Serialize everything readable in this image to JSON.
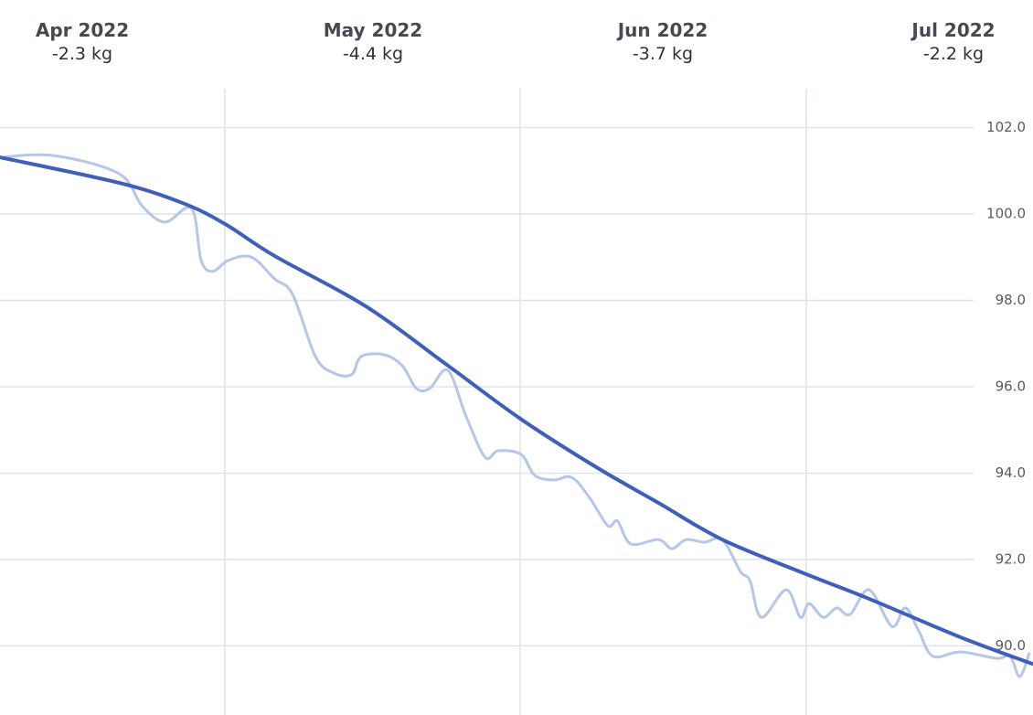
{
  "chart_data": {
    "type": "line",
    "months": [
      {
        "label": "Apr 2022",
        "change": "-2.3 kg"
      },
      {
        "label": "May 2022",
        "change": "-4.4 kg"
      },
      {
        "label": "Jun 2022",
        "change": "-3.7 kg"
      },
      {
        "label": "Jul 2022",
        "change": "-2.2 kg"
      }
    ],
    "xlim": [
      6.4,
      114.8
    ],
    "xticks": [
      30,
      61,
      91
    ],
    "ylim": [
      88.4,
      102.9
    ],
    "yticks": [
      {
        "value": 90,
        "label": "90.0"
      },
      {
        "value": 92,
        "label": "92.0"
      },
      {
        "value": 94,
        "label": "94.0"
      },
      {
        "value": 96,
        "label": "96.0"
      },
      {
        "value": 98,
        "label": "98.0"
      },
      {
        "value": 100,
        "label": "100.0"
      },
      {
        "value": 102,
        "label": "102.0"
      }
    ],
    "grid": true,
    "series": [
      {
        "color": "#b4c6e9",
        "width": 3,
        "x": [
          6.4,
          12.1,
          18.9,
          21.3,
          23.7,
          26.5,
          27.5,
          28.7,
          30.4,
          32.8,
          35.2,
          37.1,
          39.5,
          41.4,
          43.3,
          44.3,
          46.7,
          48.6,
          50.1,
          51.5,
          53.4,
          55.3,
          57.3,
          58.7,
          61.1,
          62.5,
          64.5,
          66.4,
          68.3,
          70.2,
          71.2,
          72.6,
          75.5,
          76.9,
          78.4,
          80.3,
          82.2,
          84.1,
          85.1,
          86.3,
          88.9,
          90.4,
          91.3,
          92.8,
          94.2,
          95.6,
          97.6,
          100,
          101.4,
          102.8,
          104.3,
          107.2,
          111,
          112.4,
          113.4,
          114.4
        ],
        "values": [
          101.31,
          101.35,
          100.93,
          100.19,
          99.81,
          100.13,
          98.93,
          98.67,
          98.93,
          99.0,
          98.5,
          98.14,
          96.7,
          96.32,
          96.28,
          96.7,
          96.74,
          96.49,
          95.96,
          95.96,
          96.38,
          95.32,
          94.37,
          94.52,
          94.43,
          93.95,
          93.84,
          93.9,
          93.42,
          92.78,
          92.89,
          92.36,
          92.46,
          92.25,
          92.46,
          92.4,
          92.46,
          91.72,
          91.51,
          90.66,
          91.3,
          90.66,
          90.98,
          90.66,
          90.88,
          90.73,
          91.3,
          90.45,
          90.88,
          90.35,
          89.76,
          89.86,
          89.71,
          89.76,
          89.29,
          89.82
        ]
      },
      {
        "color": "#3f5fbd",
        "width": 4,
        "x": [
          6.4,
          18.9,
          25.6,
          30,
          35.2,
          44.8,
          53.4,
          61,
          68.8,
          75.5,
          82.2,
          91,
          97.6,
          107.2,
          114.8
        ],
        "values": [
          101.31,
          100.72,
          100.25,
          99.77,
          99.03,
          97.86,
          96.49,
          95.26,
          94.16,
          93.31,
          92.46,
          91.66,
          91.09,
          90.2,
          89.58
        ]
      }
    ]
  }
}
